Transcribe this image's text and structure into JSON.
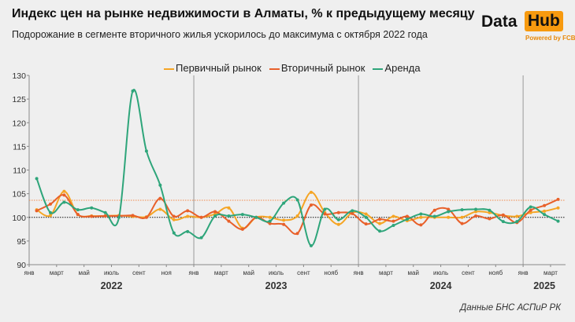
{
  "header": {
    "title": "Индекс цен на рынке недвижимости в Алматы, % к предыдущему месяцу",
    "subtitle": "Подорожание в сегменте вторичного жилья ускорилось до максимума с октября 2022 года"
  },
  "logo": {
    "text1": "Data",
    "text2": "Hub",
    "powered": "Powered by FCBK",
    "accent": "#f79a0f"
  },
  "source": "Данные БНС АСПиР РК",
  "chart_data": {
    "type": "line",
    "title": "Индекс цен на рынке недвижимости в Алматы, % к предыдущему месяцу",
    "ylim": [
      90,
      130
    ],
    "yticks": [
      90,
      95,
      100,
      105,
      110,
      115,
      120,
      125,
      130
    ],
    "month_labels": [
      {
        "i": 0,
        "label": "янв"
      },
      {
        "i": 2,
        "label": "март"
      },
      {
        "i": 4,
        "label": "май"
      },
      {
        "i": 6,
        "label": "июль"
      },
      {
        "i": 8,
        "label": "сент"
      },
      {
        "i": 10,
        "label": "ноя"
      },
      {
        "i": 12,
        "label": "янв"
      },
      {
        "i": 14,
        "label": "март"
      },
      {
        "i": 16,
        "label": "май"
      },
      {
        "i": 18,
        "label": "июль"
      },
      {
        "i": 20,
        "label": "сент"
      },
      {
        "i": 22,
        "label": "нояб"
      },
      {
        "i": 24,
        "label": "янв"
      },
      {
        "i": 26,
        "label": "март"
      },
      {
        "i": 28,
        "label": "май"
      },
      {
        "i": 30,
        "label": "июль"
      },
      {
        "i": 32,
        "label": "сент"
      },
      {
        "i": 34,
        "label": "нояб"
      },
      {
        "i": 36,
        "label": "янв"
      },
      {
        "i": 38,
        "label": "март"
      }
    ],
    "years": [
      {
        "label": "2022",
        "start": 0,
        "end": 12
      },
      {
        "label": "2023",
        "start": 12,
        "end": 24
      },
      {
        "label": "2024",
        "start": 24,
        "end": 36
      },
      {
        "label": "2025",
        "start": 36,
        "end": 39
      }
    ],
    "x": [
      "2022-01",
      "2022-02",
      "2022-03",
      "2022-04",
      "2022-05",
      "2022-06",
      "2022-07",
      "2022-08",
      "2022-09",
      "2022-10",
      "2022-11",
      "2022-12",
      "2023-01",
      "2023-02",
      "2023-03",
      "2023-04",
      "2023-05",
      "2023-06",
      "2023-07",
      "2023-08",
      "2023-09",
      "2023-10",
      "2023-11",
      "2023-12",
      "2024-01",
      "2024-02",
      "2024-03",
      "2024-04",
      "2024-05",
      "2024-06",
      "2024-07",
      "2024-08",
      "2024-09",
      "2024-10",
      "2024-11",
      "2024-12",
      "2025-01",
      "2025-02",
      "2025-03"
    ],
    "series": [
      {
        "name": "Первичный рынок",
        "color": "#f5a524",
        "values": [
          101.6,
          100.4,
          105.5,
          100.6,
          100.3,
          100.3,
          100.4,
          100.2,
          100.1,
          101.7,
          99.5,
          100.2,
          100.0,
          100.7,
          102.0,
          97.7,
          100.0,
          100.0,
          99.4,
          100.3,
          105.3,
          101.0,
          98.5,
          101.0,
          100.7,
          98.7,
          100.2,
          99.3,
          100.0,
          100.0,
          100.0,
          100.0,
          101.2,
          101.0,
          100.4,
          100.2,
          101.0,
          101.3,
          102.0
        ]
      },
      {
        "name": "Вторичный рынок",
        "color": "#e8602a",
        "values": [
          101.4,
          102.8,
          104.7,
          100.6,
          100.2,
          100.3,
          100.3,
          100.4,
          100.0,
          104.0,
          100.2,
          101.4,
          100.0,
          101.2,
          99.2,
          97.5,
          100.0,
          98.7,
          98.5,
          96.6,
          102.6,
          100.7,
          101.0,
          100.8,
          98.6,
          99.6,
          99.2,
          100.2,
          98.4,
          101.5,
          101.7,
          98.7,
          100.3,
          99.7,
          100.5,
          98.9,
          101.5,
          102.5,
          103.8
        ]
      },
      {
        "name": "Аренда",
        "color": "#2ea57a",
        "values": [
          108.2,
          101.0,
          103.2,
          101.6,
          102.0,
          101.0,
          100.0,
          126.7,
          114.0,
          106.8,
          96.7,
          97.0,
          95.7,
          100.3,
          100.3,
          100.6,
          100.0,
          99.2,
          103.0,
          103.7,
          94.0,
          101.7,
          99.5,
          101.4,
          100.0,
          97.1,
          98.3,
          99.6,
          100.7,
          100.2,
          101.2,
          101.6,
          101.7,
          101.5,
          99.1,
          99.1,
          102.2,
          100.6,
          99.2
        ]
      }
    ],
    "reference_lines": [
      {
        "value": 100,
        "color": "#111111",
        "style": "dotted"
      },
      {
        "value": 103.6,
        "color": "#f08a4b",
        "style": "dotted"
      }
    ],
    "legend": "top-center",
    "grid": false
  }
}
